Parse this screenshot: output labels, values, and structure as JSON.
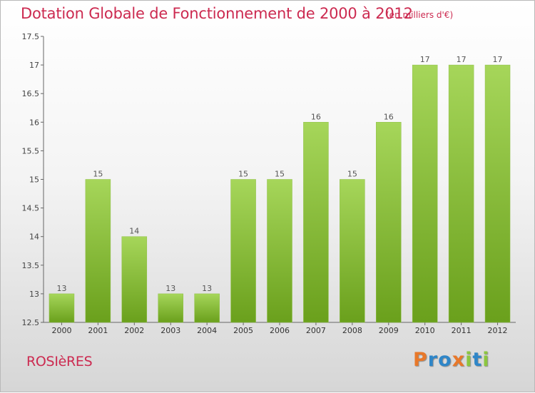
{
  "chart_data": {
    "type": "bar",
    "title": "Dotation Globale de Fonctionnement de 2000 à 2012",
    "subtitle": "(en milliers d'€)",
    "categories": [
      "2000",
      "2001",
      "2002",
      "2003",
      "2004",
      "2005",
      "2006",
      "2007",
      "2008",
      "2009",
      "2010",
      "2011",
      "2012"
    ],
    "values": [
      13,
      15,
      14,
      13,
      13,
      15,
      15,
      16,
      15,
      16,
      17,
      17,
      17
    ],
    "value_labels": [
      "13",
      "15",
      "14",
      "13",
      "13",
      "15",
      "15",
      "16",
      "15",
      "16",
      "17",
      "17",
      "17"
    ],
    "xlabel": "",
    "ylabel": "",
    "ylim": [
      12.5,
      17.5
    ],
    "yticks": [
      12.5,
      13,
      13.5,
      14,
      14.5,
      15,
      15.5,
      16,
      16.5,
      17,
      17.5
    ],
    "ytick_labels": [
      "12.5",
      "13",
      "13.5",
      "14",
      "14.5",
      "15",
      "15.5",
      "16",
      "16.5",
      "17",
      "17.5"
    ],
    "grid": false,
    "bar_color_top": "#a6d65a",
    "bar_color_bottom": "#6aa01c"
  },
  "footer": {
    "town": "ROSIèRES",
    "brand_letters": [
      {
        "char": "P",
        "color": "#e8782a"
      },
      {
        "char": "r",
        "color": "#2f86c8"
      },
      {
        "char": "o",
        "color": "#2f86c8"
      },
      {
        "char": "x",
        "color": "#e8782a"
      },
      {
        "char": "i",
        "color": "#8cc63f"
      },
      {
        "char": "t",
        "color": "#2f86c8"
      },
      {
        "char": "i",
        "color": "#8cc63f"
      }
    ]
  }
}
